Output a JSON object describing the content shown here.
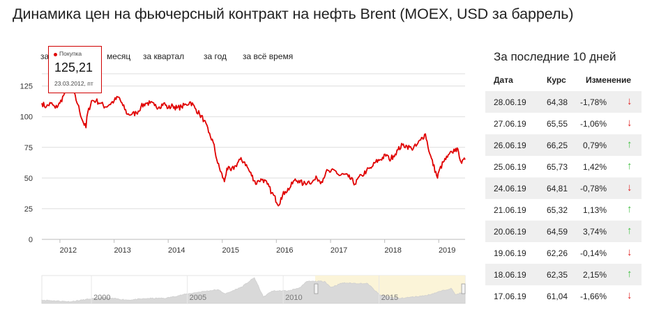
{
  "page_title": "Динамика цен на фьючерсный контракт на нефть Brent (MOEX, USD за баррель)",
  "period_tabs": [
    {
      "label": "за"
    },
    {
      "label": "месяц"
    },
    {
      "label": "за квартал"
    },
    {
      "label": "за год"
    },
    {
      "label": "за всё время"
    }
  ],
  "tooltip": {
    "series": "Покупка",
    "value": "125,21",
    "date": "23.03.2012, пт"
  },
  "colors": {
    "series": "#e00000",
    "navigator_fill": "#d9d9d9",
    "navigator_selection": "#fbf4d8",
    "grid": "#dddddd"
  },
  "chart_data": {
    "type": "line",
    "x_kind": "date",
    "ylim": [
      0,
      135
    ],
    "yticks": [
      0,
      25,
      50,
      75,
      100,
      125
    ],
    "xticks": [
      "2012",
      "2013",
      "2014",
      "2015",
      "2016",
      "2017",
      "2018",
      "2019"
    ],
    "x_range": [
      "2011-09-01",
      "2019-06-28"
    ],
    "series": [
      {
        "points": [
          [
            "2011-09-01",
            111
          ],
          [
            "2011-10-01",
            108
          ],
          [
            "2011-11-01",
            111
          ],
          [
            "2011-12-01",
            107
          ],
          [
            "2012-01-01",
            111
          ],
          [
            "2012-02-01",
            119
          ],
          [
            "2012-03-01",
            124
          ],
          [
            "2012-03-23",
            125.21
          ],
          [
            "2012-04-01",
            120
          ],
          [
            "2012-05-01",
            110
          ],
          [
            "2012-06-01",
            97
          ],
          [
            "2012-06-25",
            91
          ],
          [
            "2012-07-01",
            100
          ],
          [
            "2012-08-01",
            113
          ],
          [
            "2012-09-01",
            113
          ],
          [
            "2012-10-01",
            111
          ],
          [
            "2012-11-01",
            108
          ],
          [
            "2012-12-01",
            110
          ],
          [
            "2013-01-01",
            113
          ],
          [
            "2013-02-01",
            116
          ],
          [
            "2013-03-01",
            109
          ],
          [
            "2013-04-01",
            102
          ],
          [
            "2013-05-01",
            102
          ],
          [
            "2013-06-01",
            103
          ],
          [
            "2013-07-01",
            108
          ],
          [
            "2013-08-01",
            111
          ],
          [
            "2013-09-01",
            111
          ],
          [
            "2013-10-01",
            109
          ],
          [
            "2013-11-01",
            108
          ],
          [
            "2013-12-01",
            111
          ],
          [
            "2014-01-01",
            107
          ],
          [
            "2014-02-01",
            109
          ],
          [
            "2014-03-01",
            107
          ],
          [
            "2014-04-01",
            108
          ],
          [
            "2014-05-01",
            110
          ],
          [
            "2014-06-01",
            112
          ],
          [
            "2014-07-01",
            107
          ],
          [
            "2014-08-01",
            102
          ],
          [
            "2014-09-01",
            97
          ],
          [
            "2014-10-01",
            87
          ],
          [
            "2014-11-01",
            79
          ],
          [
            "2014-12-01",
            62
          ],
          [
            "2015-01-15",
            47
          ],
          [
            "2015-02-01",
            58
          ],
          [
            "2015-03-01",
            56
          ],
          [
            "2015-04-01",
            60
          ],
          [
            "2015-05-01",
            65
          ],
          [
            "2015-06-01",
            63
          ],
          [
            "2015-07-01",
            56
          ],
          [
            "2015-08-20",
            45
          ],
          [
            "2015-09-01",
            48
          ],
          [
            "2015-10-01",
            49
          ],
          [
            "2015-11-01",
            45
          ],
          [
            "2015-12-01",
            38
          ],
          [
            "2016-01-20",
            28
          ],
          [
            "2016-02-01",
            34
          ],
          [
            "2016-03-01",
            39
          ],
          [
            "2016-04-01",
            42
          ],
          [
            "2016-05-01",
            48
          ],
          [
            "2016-06-01",
            48
          ],
          [
            "2016-07-01",
            45
          ],
          [
            "2016-08-01",
            47
          ],
          [
            "2016-09-01",
            47
          ],
          [
            "2016-10-01",
            50
          ],
          [
            "2016-11-01",
            47
          ],
          [
            "2016-12-01",
            55
          ],
          [
            "2017-01-01",
            55
          ],
          [
            "2017-02-01",
            56
          ],
          [
            "2017-03-01",
            52
          ],
          [
            "2017-04-01",
            53
          ],
          [
            "2017-05-01",
            51
          ],
          [
            "2017-06-20",
            45
          ],
          [
            "2017-07-01",
            49
          ],
          [
            "2017-08-01",
            52
          ],
          [
            "2017-09-01",
            56
          ],
          [
            "2017-10-01",
            58
          ],
          [
            "2017-11-01",
            63
          ],
          [
            "2017-12-01",
            65
          ],
          [
            "2018-01-15",
            69
          ],
          [
            "2018-02-01",
            65
          ],
          [
            "2018-03-01",
            68
          ],
          [
            "2018-04-01",
            73
          ],
          [
            "2018-05-01",
            77
          ],
          [
            "2018-06-01",
            76
          ],
          [
            "2018-07-01",
            74
          ],
          [
            "2018-08-01",
            76
          ],
          [
            "2018-09-01",
            81
          ],
          [
            "2018-10-03",
            86
          ],
          [
            "2018-11-01",
            70
          ],
          [
            "2018-12-24",
            50
          ],
          [
            "2019-01-01",
            55
          ],
          [
            "2019-02-01",
            63
          ],
          [
            "2019-03-01",
            67
          ],
          [
            "2019-04-01",
            71
          ],
          [
            "2019-04-25",
            74
          ],
          [
            "2019-05-15",
            71
          ],
          [
            "2019-06-05",
            62
          ],
          [
            "2019-06-28",
            65
          ]
        ]
      }
    ],
    "navigator": {
      "labels": [
        "2000",
        "2005",
        "2010",
        "2015"
      ],
      "x_range": [
        "1997-06-01",
        "2019-06-28"
      ],
      "selection": [
        "2011-09-01",
        "2019-06-28"
      ],
      "points": [
        [
          "1997-06-01",
          19
        ],
        [
          "1998-12-01",
          10
        ],
        [
          "1999-12-01",
          25
        ],
        [
          "2000-09-01",
          33
        ],
        [
          "2001-12-01",
          19
        ],
        [
          "2002-12-01",
          28
        ],
        [
          "2003-12-01",
          30
        ],
        [
          "2004-10-01",
          49
        ],
        [
          "2005-08-01",
          64
        ],
        [
          "2006-08-01",
          78
        ],
        [
          "2007-01-01",
          54
        ],
        [
          "2007-11-01",
          93
        ],
        [
          "2008-07-01",
          146
        ],
        [
          "2008-12-20",
          36
        ],
        [
          "2009-06-01",
          70
        ],
        [
          "2010-05-01",
          72
        ],
        [
          "2010-12-01",
          92
        ],
        [
          "2011-04-01",
          125
        ],
        [
          "2012-03-01",
          125
        ],
        [
          "2012-06-25",
          91
        ],
        [
          "2013-02-01",
          116
        ],
        [
          "2014-06-01",
          112
        ],
        [
          "2015-01-15",
          47
        ],
        [
          "2016-01-20",
          28
        ],
        [
          "2017-06-20",
          45
        ],
        [
          "2018-10-03",
          86
        ],
        [
          "2018-12-24",
          50
        ],
        [
          "2019-06-28",
          65
        ]
      ]
    }
  },
  "table": {
    "title": "За последние 10 дней",
    "headers": {
      "date": "Дата",
      "rate": "Курс",
      "change": "Изменение"
    },
    "rows": [
      {
        "date": "28.06.19",
        "rate": "64,38",
        "change": "-1,78%",
        "dir": "down",
        "arrow": "↓"
      },
      {
        "date": "27.06.19",
        "rate": "65,55",
        "change": "-1,06%",
        "dir": "down",
        "arrow": "↓"
      },
      {
        "date": "26.06.19",
        "rate": "66,25",
        "change": "0,79%",
        "dir": "up",
        "arrow": "↑"
      },
      {
        "date": "25.06.19",
        "rate": "65,73",
        "change": "1,42%",
        "dir": "up",
        "arrow": "↑"
      },
      {
        "date": "24.06.19",
        "rate": "64,81",
        "change": "-0,78%",
        "dir": "down",
        "arrow": "↓"
      },
      {
        "date": "21.06.19",
        "rate": "65,32",
        "change": "1,13%",
        "dir": "up",
        "arrow": "↑"
      },
      {
        "date": "20.06.19",
        "rate": "64,59",
        "change": "3,74%",
        "dir": "up",
        "arrow": "↑"
      },
      {
        "date": "19.06.19",
        "rate": "62,26",
        "change": "-0,14%",
        "dir": "down",
        "arrow": "↓"
      },
      {
        "date": "18.06.19",
        "rate": "62,35",
        "change": "2,15%",
        "dir": "up",
        "arrow": "↑"
      },
      {
        "date": "17.06.19",
        "rate": "61,04",
        "change": "-1,66%",
        "dir": "down",
        "arrow": "↓"
      }
    ]
  }
}
